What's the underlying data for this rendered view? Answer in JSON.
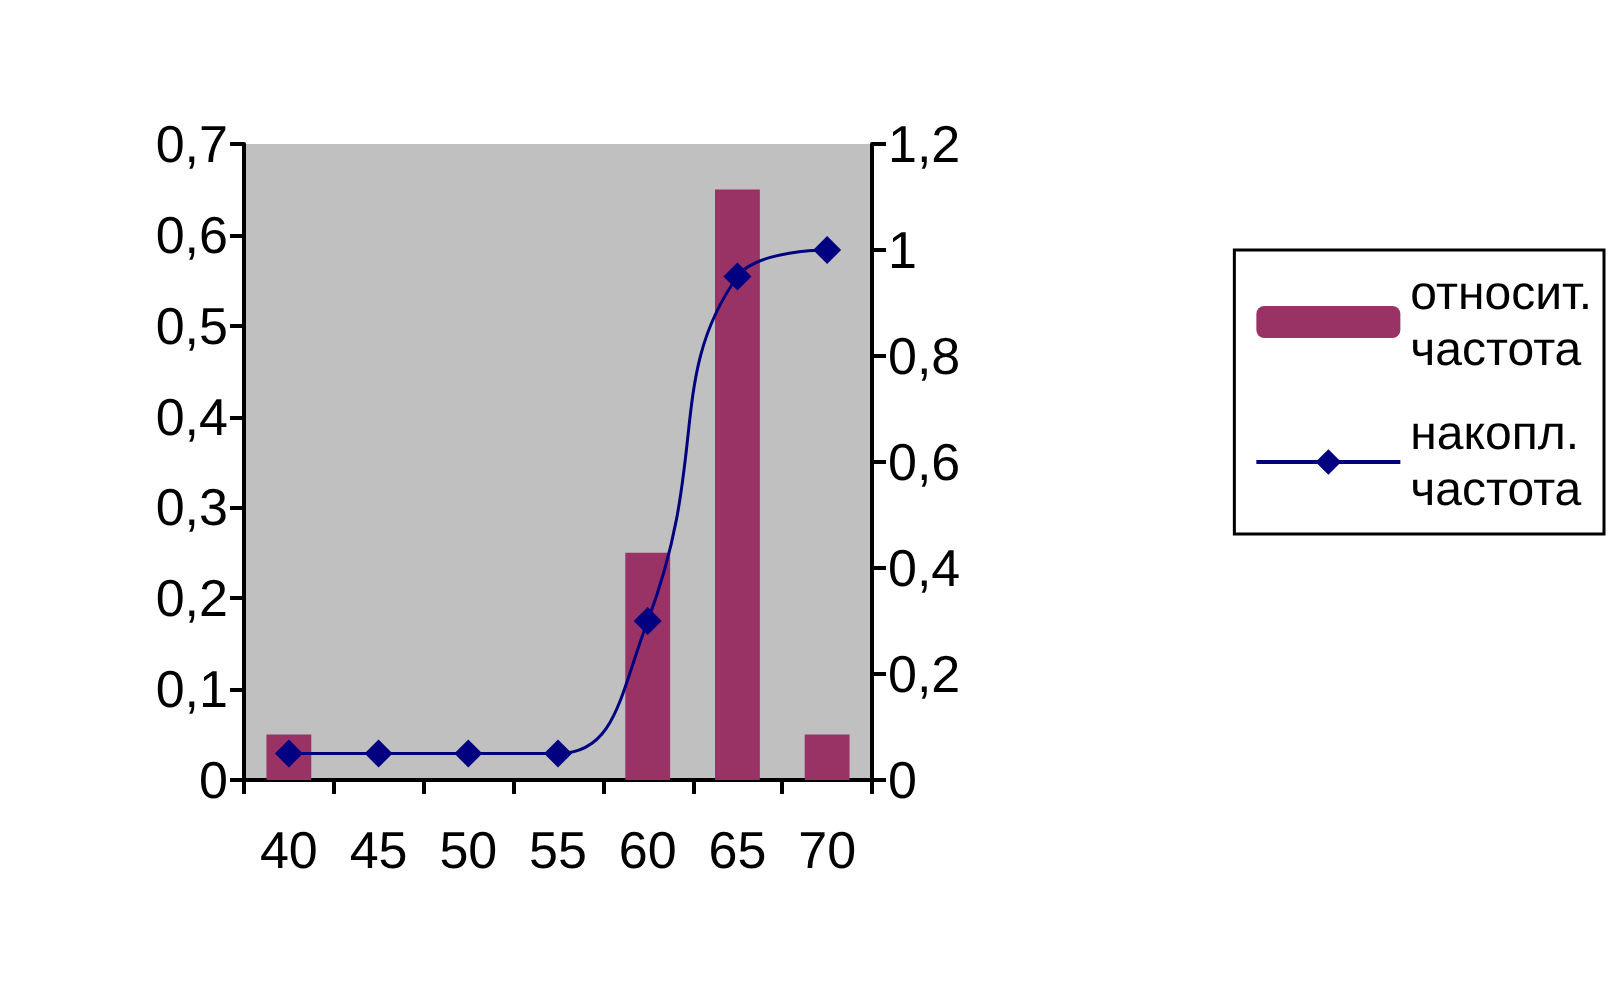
{
  "chart_data": {
    "type": "bar",
    "categories": [
      "40",
      "45",
      "50",
      "55",
      "60",
      "65",
      "70"
    ],
    "series": [
      {
        "name": "относит.\nчастота",
        "color": "#993366",
        "values": [
          0.05,
          0,
          0,
          0,
          0.25,
          0.65,
          0.05
        ]
      },
      {
        "name": "накопл.\nчастота",
        "type": "line",
        "axis": "y2",
        "color": "#000080",
        "marker": "diamond",
        "values": [
          0.05,
          0.05,
          0.05,
          0.05,
          0.3,
          0.95,
          1
        ]
      }
    ],
    "ylim": [
      0,
      0.7
    ],
    "yticks": [
      {
        "value": 0,
        "label": "0"
      },
      {
        "value": 0.1,
        "label": "0,1"
      },
      {
        "value": 0.2,
        "label": "0,2"
      },
      {
        "value": 0.3,
        "label": "0,3"
      },
      {
        "value": 0.4,
        "label": "0,4"
      },
      {
        "value": 0.5,
        "label": "0,5"
      },
      {
        "value": 0.6,
        "label": "0,6"
      },
      {
        "value": 0.7,
        "label": "0,7"
      }
    ],
    "y2lim": [
      0,
      1.2
    ],
    "y2ticks": [
      {
        "value": 0,
        "label": "0"
      },
      {
        "value": 0.2,
        "label": "0,2"
      },
      {
        "value": 0.4,
        "label": "0,4"
      },
      {
        "value": 0.6,
        "label": "0,6"
      },
      {
        "value": 0.8,
        "label": "0,8"
      },
      {
        "value": 1,
        "label": "1"
      },
      {
        "value": 1.2,
        "label": "1,2"
      }
    ],
    "grid": false,
    "legend": "right"
  }
}
